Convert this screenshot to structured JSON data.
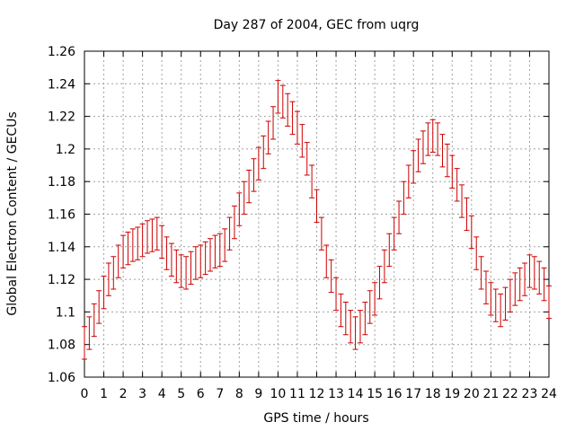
{
  "chart_data": {
    "type": "scatter",
    "title": "Day 287 of 2004, GEC from uqrg",
    "xlabel": "GPS time / hours",
    "ylabel": "Global Electron Content / GECUs",
    "xlim": [
      0,
      24
    ],
    "ylim": [
      1.06,
      1.26
    ],
    "x_ticks": [
      0,
      1,
      2,
      3,
      4,
      5,
      6,
      7,
      8,
      9,
      10,
      11,
      12,
      13,
      14,
      15,
      16,
      17,
      18,
      19,
      20,
      21,
      22,
      23,
      24
    ],
    "x_tick_labels": [
      "0",
      "1",
      "2",
      "3",
      "4",
      "5",
      "6",
      "7",
      "8",
      "9",
      "10",
      "11",
      "12",
      "13",
      "14",
      "15",
      "16",
      "17",
      "18",
      "19",
      "20",
      "21",
      "22",
      "23",
      "24"
    ],
    "y_ticks": [
      1.06,
      1.08,
      1.1,
      1.12,
      1.14,
      1.16,
      1.18,
      1.2,
      1.22,
      1.24,
      1.26
    ],
    "y_tick_labels": [
      "1.06",
      "1.08",
      "1.1",
      "1.12",
      "1.14",
      "1.16",
      "1.18",
      "1.2",
      "1.22",
      "1.24",
      "1.26"
    ],
    "grid": true,
    "series": [
      {
        "color": "#cc0000",
        "error": 0.01,
        "x": [
          0,
          0.25,
          0.5,
          0.75,
          1,
          1.25,
          1.5,
          1.75,
          2,
          2.25,
          2.5,
          2.75,
          3,
          3.25,
          3.5,
          3.75,
          4,
          4.25,
          4.5,
          4.75,
          5,
          5.25,
          5.5,
          5.75,
          6,
          6.25,
          6.5,
          6.75,
          7,
          7.25,
          7.5,
          7.75,
          8,
          8.25,
          8.5,
          8.75,
          9,
          9.25,
          9.5,
          9.75,
          10,
          10.25,
          10.5,
          10.75,
          11,
          11.25,
          11.5,
          11.75,
          12,
          12.25,
          12.5,
          12.75,
          13,
          13.25,
          13.5,
          13.75,
          14,
          14.25,
          14.5,
          14.75,
          15,
          15.25,
          15.5,
          15.75,
          16,
          16.25,
          16.5,
          16.75,
          17,
          17.25,
          17.5,
          17.75,
          18,
          18.25,
          18.5,
          18.75,
          19,
          19.25,
          19.5,
          19.75,
          20,
          20.25,
          20.5,
          20.75,
          21,
          21.25,
          21.5,
          21.75,
          22,
          22.25,
          22.5,
          22.75,
          23,
          23.25,
          23.5,
          23.75,
          24
        ],
        "y": [
          1.081,
          1.087,
          1.095,
          1.103,
          1.112,
          1.12,
          1.124,
          1.131,
          1.137,
          1.139,
          1.141,
          1.142,
          1.144,
          1.146,
          1.147,
          1.148,
          1.143,
          1.136,
          1.132,
          1.128,
          1.125,
          1.124,
          1.127,
          1.13,
          1.131,
          1.133,
          1.135,
          1.137,
          1.138,
          1.141,
          1.148,
          1.155,
          1.163,
          1.17,
          1.177,
          1.184,
          1.191,
          1.198,
          1.207,
          1.216,
          1.232,
          1.229,
          1.224,
          1.219,
          1.213,
          1.205,
          1.194,
          1.18,
          1.165,
          1.148,
          1.131,
          1.122,
          1.111,
          1.101,
          1.096,
          1.091,
          1.087,
          1.091,
          1.096,
          1.103,
          1.108,
          1.118,
          1.128,
          1.138,
          1.148,
          1.158,
          1.17,
          1.18,
          1.189,
          1.196,
          1.201,
          1.206,
          1.208,
          1.206,
          1.199,
          1.193,
          1.186,
          1.178,
          1.168,
          1.16,
          1.149,
          1.136,
          1.124,
          1.115,
          1.108,
          1.104,
          1.101,
          1.105,
          1.11,
          1.114,
          1.117,
          1.12,
          1.125,
          1.124,
          1.121,
          1.117,
          1.106
        ]
      }
    ]
  }
}
